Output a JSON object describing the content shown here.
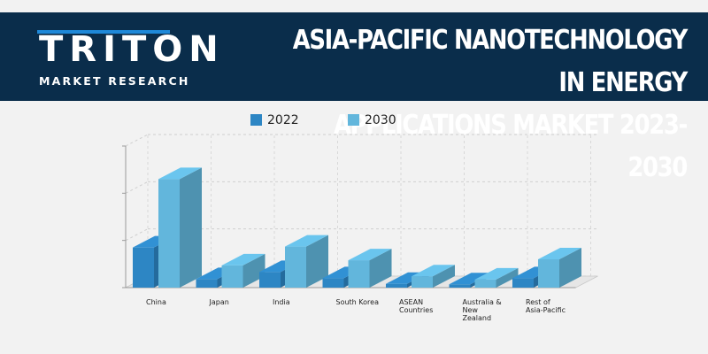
{
  "header": {
    "logo_word": "TRITON",
    "logo_subtitle": "MARKET RESEARCH",
    "title_line1": "ASIA-PACIFIC NANOTECHNOLOGY IN ENERGY",
    "title_line2": "APPLICATIONS MARKET 2023-2030"
  },
  "colors": {
    "banner": "#0a2d4b",
    "series_2022": "#2d86c4",
    "series_2030": "#62b6dc"
  },
  "chart_data": {
    "type": "bar",
    "title": "ASIA-PACIFIC NANOTECHNOLOGY IN ENERGY APPLICATIONS MARKET 2023-2030",
    "xlabel": "",
    "ylabel": "",
    "ylim": [
      0,
      3
    ],
    "grid": true,
    "legend": "top",
    "categories": [
      "China",
      "Japan",
      "India",
      "South Korea",
      "ASEAN Countries",
      "Australia & New Zealand",
      "Rest of Asia-Pacific"
    ],
    "series": [
      {
        "name": "2022",
        "values": [
          0.85,
          0.18,
          0.33,
          0.2,
          0.08,
          0.07,
          0.2
        ]
      },
      {
        "name": "2030",
        "values": [
          2.3,
          0.47,
          0.87,
          0.58,
          0.24,
          0.17,
          0.6
        ]
      }
    ]
  }
}
